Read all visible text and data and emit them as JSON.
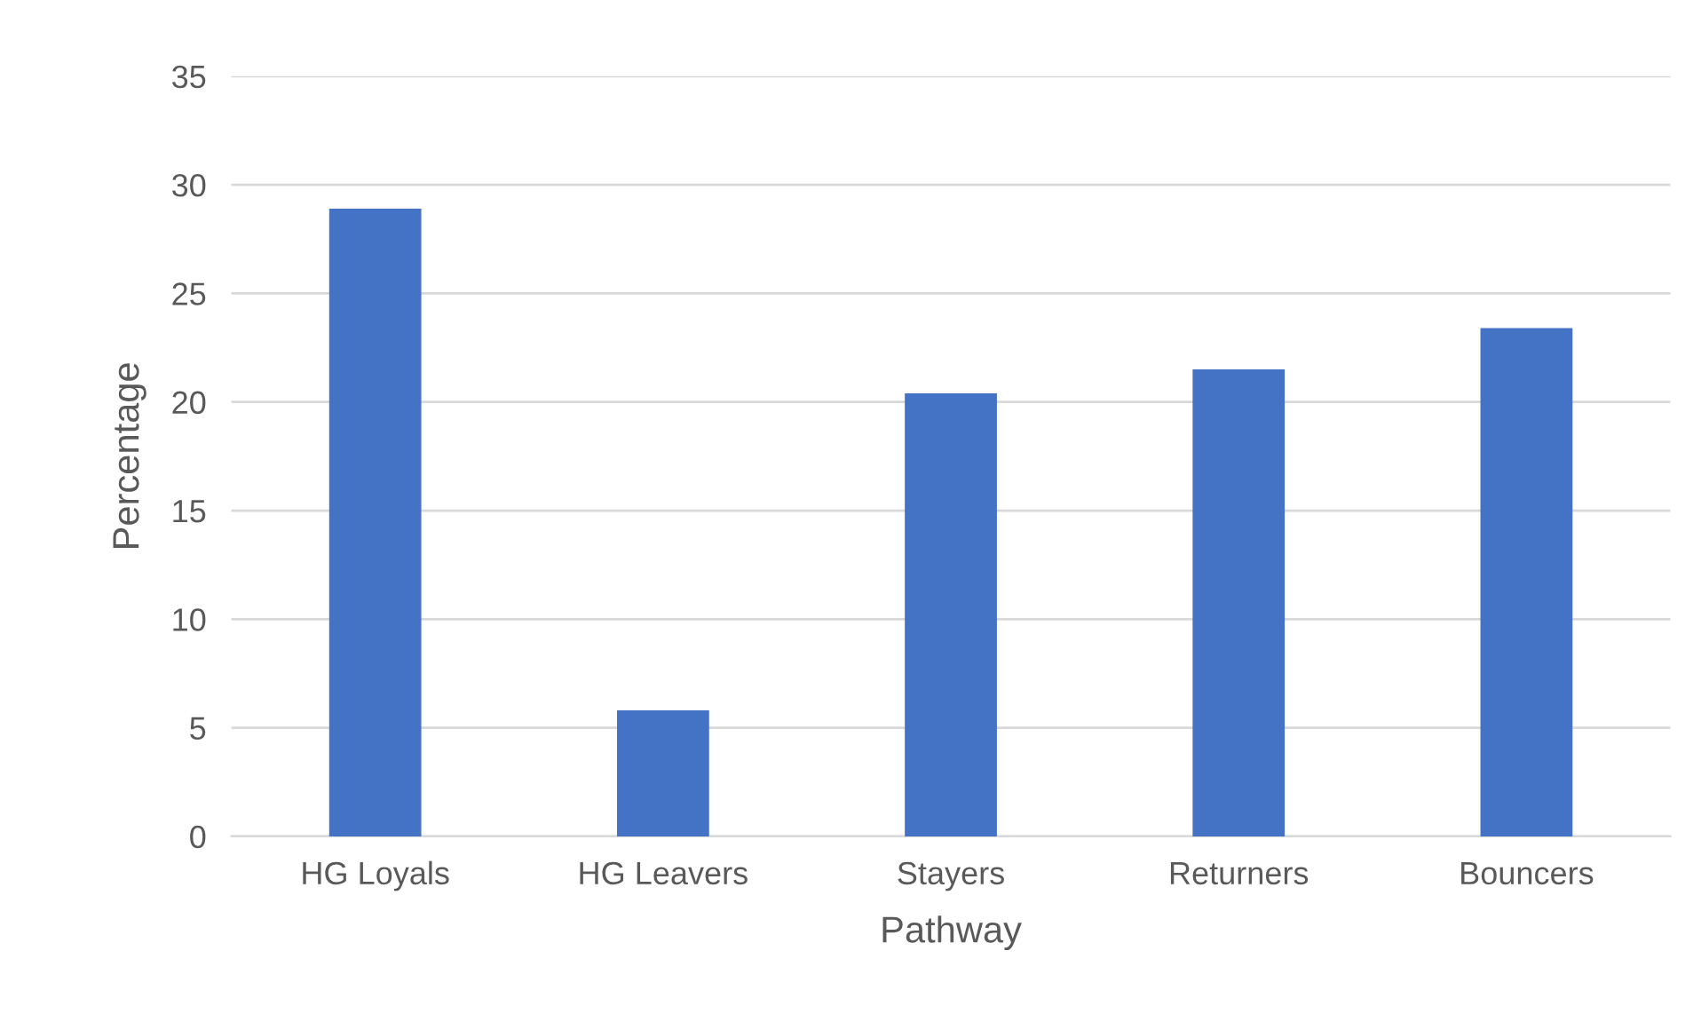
{
  "chart_data": {
    "type": "bar",
    "xlabel": "Pathway",
    "ylabel": "Percentage",
    "categories": [
      "HG Loyals",
      "HG Leavers",
      "Stayers",
      "Returners",
      "Bouncers"
    ],
    "values": [
      28.9,
      5.8,
      20.4,
      21.5,
      23.4
    ],
    "color": "#4472c4",
    "ylim": [
      0,
      35
    ],
    "yticks": [
      0,
      5,
      10,
      15,
      20,
      25,
      30,
      35
    ],
    "grid": "y",
    "legend": false
  }
}
